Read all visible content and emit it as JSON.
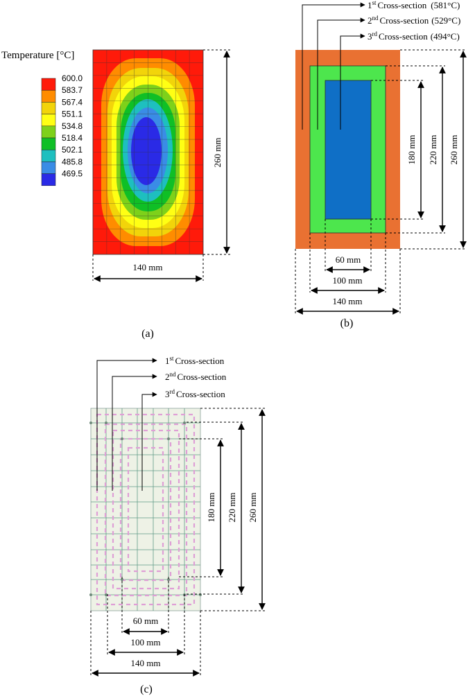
{
  "panel_a": {
    "legend_title": "Temperature [°C]",
    "legend": [
      {
        "label": "600.0",
        "color": "#ff1a0a"
      },
      {
        "label": "583.7",
        "color": "#ff8c00"
      },
      {
        "label": "567.4",
        "color": "#f2d40a"
      },
      {
        "label": "551.1",
        "color": "#ffff14"
      },
      {
        "label": "534.8",
        "color": "#7ed11a"
      },
      {
        "label": "518.4",
        "color": "#0fbf26"
      },
      {
        "label": "502.1",
        "color": "#1ebfbf"
      },
      {
        "label": "485.8",
        "color": "#3a8ce6"
      },
      {
        "label": "469.5",
        "color": "#2a2ae6"
      }
    ],
    "dim_height": "260 mm",
    "dim_width": "140 mm",
    "caption": "(a)"
  },
  "panel_b": {
    "cs1_sup": "st",
    "cs1_text": "Cross-section",
    "cs1_temp": "(581°C)",
    "cs2_sup": "nd",
    "cs2_text": "Cross-section",
    "cs2_temp": "(529°C)",
    "cs3_sup": "rd",
    "cs3_text": "Cross-section",
    "cs3_temp": "(494°C)",
    "num1": "1",
    "num2": "2",
    "num3": "3",
    "colors": {
      "outer": "#e97132",
      "middle": "#4de64d",
      "inner": "#0f6fc6"
    },
    "dim_180": "180 mm",
    "dim_220": "220 mm",
    "dim_260": "260 mm",
    "dim_60": "60 mm",
    "dim_100": "100 mm",
    "dim_140": "140 mm",
    "caption": "(b)"
  },
  "panel_c": {
    "num1": "1",
    "cs1_sup": "st",
    "cs1_text": "Cross-section",
    "num2": "2",
    "cs2_sup": "nd",
    "cs2_text": "Cross-section",
    "num3": "3",
    "cs3_sup": "rd",
    "cs3_text": "Cross-section",
    "dim_180": "180 mm",
    "dim_220": "220 mm",
    "dim_260": "260 mm",
    "dim_60": "60 mm",
    "dim_100": "100 mm",
    "dim_140": "140 mm",
    "caption": "(c)"
  }
}
